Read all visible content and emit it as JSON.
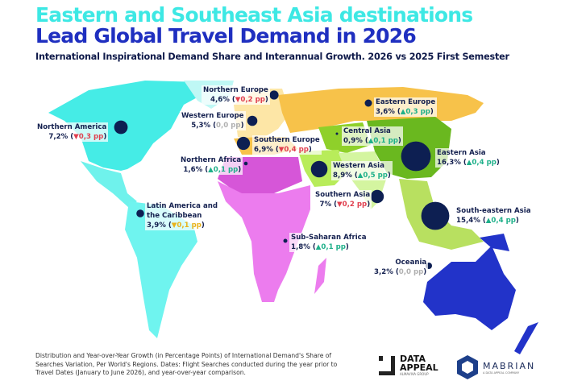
{
  "header": {
    "title_line1": "Eastern and Southeast Asia destinations",
    "title_line2": "Lead Global Travel Demand in 2026",
    "subtitle": "International Inspirational Demand Share and Interannual Growth. 2026 vs 2025 First Semester"
  },
  "colors": {
    "title_cyan": "#3de8e4",
    "title_blue": "#1f2fc0",
    "bubble": "#0d1f52",
    "up": "#1fb08a",
    "down": "#e0404f",
    "flat": "#b0b0b0",
    "americas": "#45ece6",
    "europe": "#f7c24a",
    "africa": "#e675e8",
    "asia": "#8fd02a",
    "oceania": "#2233c9"
  },
  "regions": [
    {
      "id": "northern-america",
      "name": "Northern America",
      "share": 7.2,
      "share_label": "7,2%",
      "change_label": "0,3 pp",
      "direction": "down"
    },
    {
      "id": "northern-europe",
      "name": "Northern Europe",
      "share": 4.6,
      "share_label": "4,6%",
      "change_label": "0,2 pp",
      "direction": "down"
    },
    {
      "id": "western-europe",
      "name": "Western Europe",
      "share": 5.3,
      "share_label": "5,3%",
      "change_label": "0,0 pp",
      "direction": "flat"
    },
    {
      "id": "southern-europe",
      "name": "Southern Europe",
      "share": 6.9,
      "share_label": "6,9%",
      "change_label": "0,4 pp",
      "direction": "down"
    },
    {
      "id": "northern-africa",
      "name": "Northern Africa",
      "share": 1.6,
      "share_label": "1,6%",
      "change_label": "0,1 pp",
      "direction": "up"
    },
    {
      "id": "latin-america",
      "name": "Latin America and the Caribbean",
      "name_line1": "Latin America and",
      "name_line2": "the Caribbean",
      "share": 3.9,
      "share_label": "3,9%",
      "change_label": "0,1 pp",
      "direction": "down-yellow"
    },
    {
      "id": "eastern-europe",
      "name": "Eastern Europe",
      "share": 3.6,
      "share_label": "3,6%",
      "change_label": "0,3 pp",
      "direction": "up"
    },
    {
      "id": "central-asia",
      "name": "Central Asia",
      "share": 0.9,
      "share_label": "0,9%",
      "change_label": "0,1 pp",
      "direction": "up"
    },
    {
      "id": "eastern-asia",
      "name": "Eastern Asia",
      "share": 16.3,
      "share_label": "16,3%",
      "change_label": "0,4 pp",
      "direction": "up"
    },
    {
      "id": "western-asia",
      "name": "Western Asia",
      "share": 8.9,
      "share_label": "8,9%",
      "change_label": "0,5 pp",
      "direction": "up"
    },
    {
      "id": "southern-asia",
      "name": "Southern Asia",
      "share": 7,
      "share_label": "7%",
      "change_label": "0,2 pp",
      "direction": "down"
    },
    {
      "id": "south-eastern-asia",
      "name": "South-eastern Asia",
      "share": 15.4,
      "share_label": "15,4%",
      "change_label": "0,4 pp",
      "direction": "up"
    },
    {
      "id": "sub-saharan-africa",
      "name": "Sub-Saharan Africa",
      "share": 1.8,
      "share_label": "1,8%",
      "change_label": "0,1 pp",
      "direction": "up"
    },
    {
      "id": "oceania",
      "name": "Oceania",
      "share": 3.2,
      "share_label": "3,2%",
      "change_label": "0,0 pp",
      "direction": "flat"
    }
  ],
  "footer": {
    "note": "Distribution and Year-over-Year Growth (in Percentage Points) of International Demand's Share of Searches Variation, Per World's Regions. Dates: Flight Searches conducted  during the year prior to Travel Dates (January to June 2026), and year-over-year comparison.",
    "logo_data_appeal_line1": "DATA",
    "logo_data_appeal_line2": "APPEAL",
    "logo_data_appeal_sub": "ALMAVIVA GROUP",
    "logo_mabrian": "MABRIAN",
    "logo_mabrian_sub": "A DATA APPEAL COMPANY"
  }
}
